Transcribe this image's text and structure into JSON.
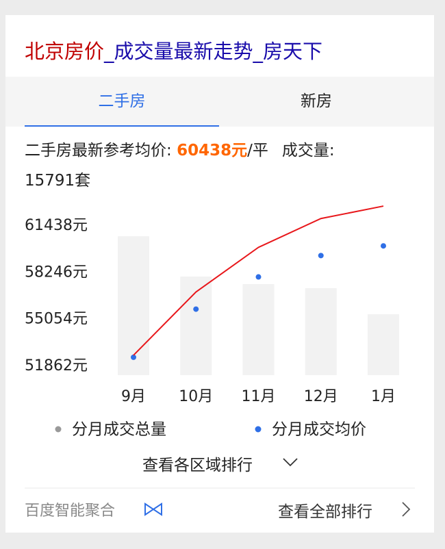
{
  "card": {
    "title_city": "北京房价",
    "title_rest": "_成交量最新走势_房天下",
    "tabs": [
      "二手房",
      "新房"
    ],
    "info": {
      "label": "二手房最新参考均价: ",
      "price": "60438元",
      "unit": "/平",
      "volume": "成交量: 15791套"
    },
    "district_link": "查看各区域排行",
    "source": "百度智能聚合",
    "all_link": "查看全部排行"
  },
  "chart_data": {
    "type": "combo",
    "categories": [
      "9月",
      "10月",
      "11月",
      "12月",
      "1月"
    ],
    "series": [
      {
        "name": "分月成交总量",
        "type": "bar",
        "axis": "y2",
        "color": "#f2f2f2",
        "legend_color": "#999999",
        "values": [
          36000,
          25550,
          23600,
          22530,
          15791
        ]
      },
      {
        "name": "分月成交均价",
        "type": "scatter",
        "color": "#2f6fe6",
        "values": [
          52470,
          55760,
          57960,
          59420,
          60080
        ]
      },
      {
        "type": "line",
        "color": "#e8171b",
        "values": [
          52610,
          56930,
          59980,
          61950,
          62800
        ]
      }
    ],
    "ylim": [
      51250,
      62850
    ],
    "yticks": [
      {
        "value": 51862,
        "label": "51862元"
      },
      {
        "value": 55054,
        "label": "55054元"
      },
      {
        "value": 58246,
        "label": "58246元"
      },
      {
        "value": 61438,
        "label": "61438元"
      }
    ],
    "y2lim": [
      0,
      44000
    ]
  }
}
